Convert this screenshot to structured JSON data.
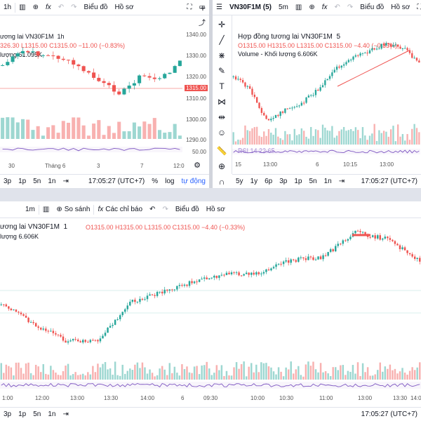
{
  "top_left": {
    "toolbar": {
      "interval": "1h",
      "chart_label": "Biểu đồ",
      "profile_label": "Hồ sơ",
      "fx": "fx"
    },
    "legend": {
      "symbol": "ương lai VN30F1M",
      "interval": "1h",
      "ohlc": "326.30  L1315.00  C1315.00  −11.00 (−0.83%)",
      "volume": "lượng  61.095K"
    },
    "prices": [
      "1340.00",
      "1330.00",
      "1320.00",
      "1310.00",
      "1300.00",
      "1290.00",
      "50.00"
    ],
    "price_tag": "1315.00",
    "x_labels": [
      "30",
      "Tháng 6",
      "3",
      "7",
      "12:0"
    ],
    "bottom": {
      "ranges": [
        "3p",
        "1p",
        "5n",
        "1n"
      ],
      "time": "17:05:27 (UTC+7)",
      "percent": "%",
      "log": "log",
      "auto": "tự động"
    }
  },
  "top_right": {
    "toolbar": {
      "symbol": "VN30F1M (5)",
      "interval": "5m",
      "chart_label": "Biểu đồ",
      "profile_label": "Hồ sơ",
      "fx": "fx"
    },
    "legend": {
      "symbol": "Hợp đồng tương lai VN30F1M",
      "interval": "5",
      "ohlc": "O1315.00  H1315.00  L1315.00  C1315.00  −4.40 (−0.33%)",
      "volume": "Volume - Khối lượng  6.606K",
      "rsi": "RSI 14  22.65"
    },
    "x_labels": [
      "15",
      "13:00",
      "6",
      "10:15",
      "13:00"
    ],
    "bottom": {
      "ranges": [
        "5y",
        "1y",
        "6p",
        "3p",
        "1p",
        "5n",
        "1n"
      ],
      "time": "17:05:27 (UTC+7)"
    }
  },
  "bottom": {
    "toolbar": {
      "interval": "1m",
      "compare": "So sánh",
      "indicators": "Các chỉ báo",
      "chart_label": "Biểu đồ",
      "profile_label": "Hồ sơ"
    },
    "legend": {
      "symbol": "ương lai VN30F1M",
      "interval": "1",
      "ohlc": "O1315.00  H1315.00  L1315.00  C1315.00  −4.40 (−0.33%)",
      "volume": "lượng  6.606K"
    },
    "x_labels": [
      "1:00",
      "12:00",
      "13:00",
      "13:30",
      "14:00",
      "6",
      "09:30",
      "10:00",
      "10:30",
      "11:00",
      "13:00",
      "13:30",
      "14:00"
    ],
    "bottom": {
      "ranges": [
        "3p",
        "1p",
        "5n",
        "1n"
      ],
      "time": "17:05:27 (UTC+7)"
    }
  },
  "colors": {
    "up": "#26a69a",
    "down": "#ef5350",
    "rsi": "#7e57c2",
    "accent": "#2962ff"
  }
}
